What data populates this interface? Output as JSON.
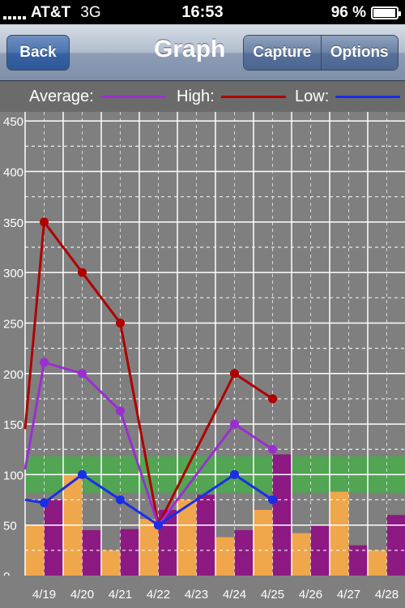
{
  "status": {
    "carrier": "AT&T",
    "network": "3G",
    "time": "16:53",
    "battery_text": "96 %",
    "battery_level": 0.96,
    "signal_bars": 5
  },
  "nav": {
    "back_label": "Back",
    "title": "Graph",
    "capture_label": "Capture",
    "options_label": "Options"
  },
  "legend": {
    "average_label": "Average:",
    "high_label": "High:",
    "low_label": "Low:",
    "average_color": "#9a2fd0",
    "high_color": "#b00000",
    "low_color": "#1a2ee8"
  },
  "chart_data": {
    "type": "line",
    "categories": [
      "4/19",
      "4/20",
      "4/21",
      "4/22",
      "4/23",
      "4/24",
      "4/25",
      "4/26",
      "4/27",
      "4/28"
    ],
    "y_ticks": [
      "0",
      "50",
      "100",
      "150",
      "200",
      "250",
      "300",
      "350",
      "400",
      "450"
    ],
    "ylim": [
      0,
      460
    ],
    "target_band": [
      82,
      118
    ],
    "target_band_color": "#52a552",
    "grid": true,
    "series": [
      {
        "name": "High",
        "color": "#b00000",
        "markers": true,
        "points": [
          [
            -0.5,
            145
          ],
          [
            0,
            350
          ],
          [
            0.5,
            300
          ],
          [
            1,
            250
          ],
          [
            1.5,
            50
          ],
          [
            2.5,
            200
          ],
          [
            3,
            175
          ]
        ]
      },
      {
        "name": "Average",
        "color": "#9a2fd0",
        "markers": true,
        "points": [
          [
            -0.5,
            105
          ],
          [
            0,
            211
          ],
          [
            0.5,
            200
          ],
          [
            1,
            163
          ],
          [
            1.5,
            50
          ],
          [
            2.5,
            150
          ],
          [
            3,
            125
          ]
        ]
      },
      {
        "name": "Low",
        "color": "#1a2ee8",
        "markers": true,
        "points": [
          [
            -0.5,
            75
          ],
          [
            0,
            72
          ],
          [
            0.5,
            100
          ],
          [
            1,
            75
          ],
          [
            1.5,
            50
          ],
          [
            2.5,
            100
          ],
          [
            3,
            75
          ]
        ]
      }
    ],
    "bars": {
      "pairs": [
        [
          50,
          75
        ],
        [
          100,
          45
        ],
        [
          25,
          46
        ],
        [
          56,
          65
        ],
        [
          75,
          80
        ],
        [
          38,
          45
        ],
        [
          65,
          120
        ],
        [
          42,
          50
        ],
        [
          83,
          30
        ],
        [
          25,
          60
        ]
      ],
      "colors": [
        "#f0a64a",
        "#8c1a82"
      ]
    }
  }
}
